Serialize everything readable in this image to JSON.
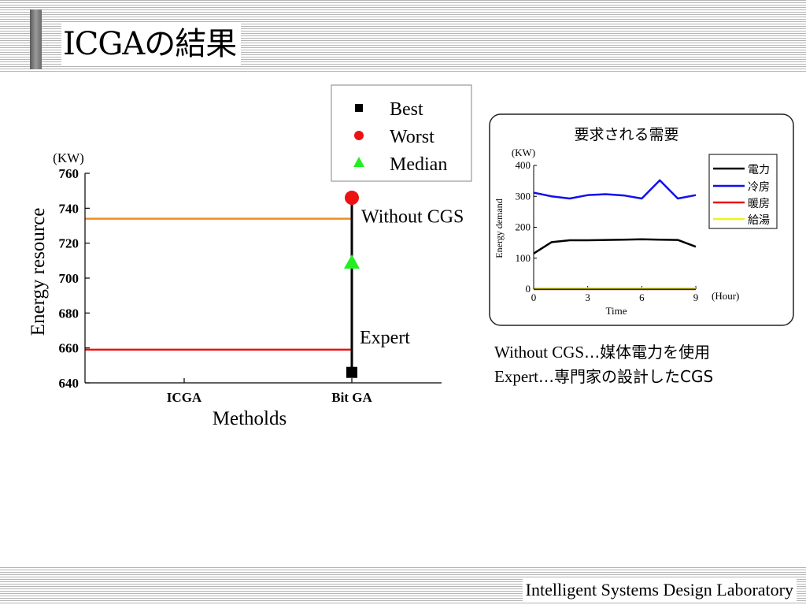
{
  "slide": {
    "title": "ICGAの結果",
    "footer": "Intelligent Systems Design Laboratory"
  },
  "notes": [
    {
      "term": "Without CGS",
      "separator": "…",
      "desc": "媒体電力を使用"
    },
    {
      "term": "Expert",
      "separator": "…",
      "desc": "専門家の設計したCGS"
    }
  ],
  "chart_data": [
    {
      "type": "scatter",
      "xlabel": "Metholds",
      "ylabel": "Energy resource",
      "y_unit": "(KW)",
      "categories": [
        "ICGA",
        "Bit GA"
      ],
      "ylim": [
        640,
        760
      ],
      "yticks": [
        640,
        660,
        680,
        700,
        720,
        740,
        760
      ],
      "series": [
        {
          "name": "Best",
          "marker": "square",
          "color": "#000000",
          "values": [
            null,
            646
          ]
        },
        {
          "name": "Worst",
          "marker": "circle",
          "color": "#ee1111",
          "values": [
            null,
            746
          ]
        },
        {
          "name": "Median",
          "marker": "triangle",
          "color": "#22ee22",
          "values": [
            null,
            709
          ]
        }
      ],
      "range_line": {
        "category": "Bit GA",
        "from": 646,
        "to": 746,
        "color": "#000000"
      },
      "reference_lines": [
        {
          "label": "Without CGS",
          "value": 734,
          "color": "#f08c1e"
        },
        {
          "label": "Expert",
          "value": 659,
          "color": "#ee1111"
        }
      ],
      "legend_position": "top-right",
      "grid": false
    },
    {
      "type": "line",
      "title": "要求される需要",
      "xlabel": "Time",
      "x_unit": "(Hour)",
      "ylabel": "Energy demand",
      "y_unit": "(KW)",
      "xlim": [
        0,
        9
      ],
      "ylim": [
        0,
        400
      ],
      "xticks": [
        0,
        3,
        6,
        9
      ],
      "yticks": [
        0,
        100,
        200,
        300,
        400
      ],
      "x": [
        0,
        1,
        2,
        3,
        4,
        5,
        6,
        7,
        8,
        9
      ],
      "series": [
        {
          "name": "電力",
          "color": "#000000",
          "values": [
            115,
            152,
            158,
            158,
            159,
            160,
            161,
            160,
            159,
            137
          ]
        },
        {
          "name": "冷房",
          "color": "#1010ee",
          "values": [
            312,
            300,
            293,
            304,
            307,
            303,
            293,
            352,
            293,
            304
          ]
        },
        {
          "name": "暖房",
          "color": "#ee1111",
          "values": [
            0,
            0,
            0,
            0,
            0,
            0,
            0,
            0,
            0,
            0
          ]
        },
        {
          "name": "給湯",
          "color": "#f2f21a",
          "values": [
            0,
            0,
            0,
            0,
            0,
            0,
            0,
            0,
            0,
            0
          ]
        }
      ],
      "legend_position": "right",
      "grid": false
    }
  ]
}
